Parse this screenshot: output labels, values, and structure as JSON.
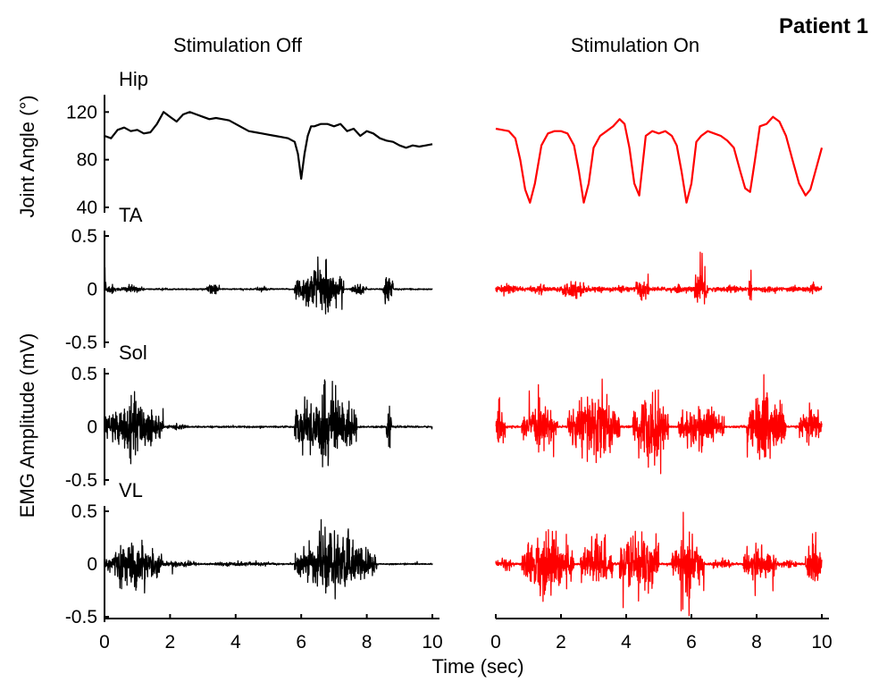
{
  "figure": {
    "patient_label": "Patient 1",
    "col_titles": [
      "Stimulation Off",
      "Stimulation On"
    ],
    "col_colors": [
      "#000000",
      "#ff0000"
    ],
    "ylabel_angle": "Joint Angle (°)",
    "ylabel_emg": "EMG Amplitude (mV)",
    "xlabel": "Time (sec)",
    "row_labels": [
      "Hip",
      "TA",
      "Sol",
      "VL"
    ]
  },
  "chart_data": [
    {
      "type": "line",
      "panel": "Hip - Stimulation Off",
      "label": "Hip",
      "color": "#000000",
      "xlim": [
        0,
        10
      ],
      "ylim": [
        40,
        130
      ],
      "yticks": [
        40,
        80,
        120
      ],
      "x": [
        0,
        0.2,
        0.4,
        0.6,
        0.8,
        1.0,
        1.2,
        1.4,
        1.6,
        1.8,
        2.0,
        2.2,
        2.4,
        2.6,
        2.8,
        3.0,
        3.2,
        3.4,
        3.6,
        3.8,
        4.0,
        4.2,
        4.4,
        4.6,
        4.8,
        5.0,
        5.2,
        5.4,
        5.6,
        5.8,
        5.9,
        6.0,
        6.1,
        6.2,
        6.3,
        6.4,
        6.6,
        6.8,
        7.0,
        7.2,
        7.4,
        7.6,
        7.8,
        8.0,
        8.2,
        8.4,
        8.6,
        8.8,
        9.0,
        9.2,
        9.4,
        9.6,
        9.8,
        10.0
      ],
      "values": [
        100,
        98,
        105,
        107,
        104,
        105,
        102,
        103,
        110,
        120,
        116,
        112,
        118,
        120,
        118,
        116,
        114,
        115,
        114,
        113,
        110,
        107,
        104,
        103,
        102,
        101,
        100,
        99,
        98,
        95,
        85,
        64,
        85,
        100,
        108,
        108,
        110,
        110,
        108,
        110,
        104,
        106,
        100,
        104,
        102,
        98,
        96,
        95,
        92,
        90,
        92,
        91,
        92,
        93
      ]
    },
    {
      "type": "line",
      "panel": "Hip - Stimulation On",
      "label": "Hip",
      "color": "#ff0000",
      "xlim": [
        0,
        10
      ],
      "ylim": [
        40,
        130
      ],
      "yticks": [
        40,
        80,
        120
      ],
      "x": [
        0,
        0.2,
        0.4,
        0.6,
        0.75,
        0.9,
        1.05,
        1.2,
        1.4,
        1.6,
        1.8,
        2.0,
        2.2,
        2.4,
        2.55,
        2.7,
        2.85,
        3.0,
        3.2,
        3.4,
        3.6,
        3.8,
        3.95,
        4.1,
        4.25,
        4.4,
        4.6,
        4.8,
        5.0,
        5.2,
        5.4,
        5.55,
        5.7,
        5.85,
        6.0,
        6.15,
        6.3,
        6.5,
        6.7,
        6.9,
        7.1,
        7.3,
        7.5,
        7.65,
        7.8,
        7.95,
        8.1,
        8.3,
        8.5,
        8.7,
        8.9,
        9.1,
        9.3,
        9.5,
        9.65,
        9.8,
        10.0
      ],
      "values": [
        106,
        105,
        104,
        98,
        80,
        55,
        44,
        60,
        92,
        102,
        104,
        104,
        102,
        92,
        70,
        44,
        60,
        90,
        100,
        104,
        108,
        114,
        110,
        90,
        60,
        50,
        100,
        104,
        102,
        104,
        100,
        92,
        70,
        44,
        60,
        95,
        100,
        104,
        102,
        100,
        96,
        90,
        70,
        56,
        53,
        80,
        108,
        110,
        116,
        112,
        100,
        80,
        60,
        50,
        55,
        70,
        90
      ]
    },
    {
      "type": "line",
      "panel": "TA - Stimulation Off",
      "label": "TA",
      "color": "#000000",
      "xlim": [
        0,
        10
      ],
      "ylim": [
        -0.5,
        0.5
      ],
      "yticks": [
        -0.5,
        0,
        0.5
      ],
      "bursts": [
        {
          "start": 0,
          "end": 0.05,
          "amp": 0.45
        },
        {
          "start": 0.05,
          "end": 0.35,
          "amp": 0.06
        },
        {
          "start": 0.4,
          "end": 1.2,
          "amp": 0.04
        },
        {
          "start": 3.1,
          "end": 3.5,
          "amp": 0.07
        },
        {
          "start": 4.6,
          "end": 5.0,
          "amp": 0.03
        },
        {
          "start": 5.8,
          "end": 7.3,
          "amp": 0.25
        },
        {
          "start": 7.5,
          "end": 8.0,
          "amp": 0.06
        },
        {
          "start": 8.5,
          "end": 8.8,
          "amp": 0.2
        }
      ],
      "baseline_noise": 0.006
    },
    {
      "type": "line",
      "panel": "TA - Stimulation On",
      "label": "TA",
      "color": "#ff0000",
      "xlim": [
        0,
        10
      ],
      "ylim": [
        -0.5,
        0.5
      ],
      "yticks": [
        -0.5,
        0,
        0.5
      ],
      "bursts": [
        {
          "start": 0,
          "end": 0.8,
          "amp": 0.05
        },
        {
          "start": 1.1,
          "end": 1.6,
          "amp": 0.05
        },
        {
          "start": 2.0,
          "end": 2.8,
          "amp": 0.1
        },
        {
          "start": 3.7,
          "end": 4.0,
          "amp": 0.05
        },
        {
          "start": 4.3,
          "end": 4.7,
          "amp": 0.14
        },
        {
          "start": 5.4,
          "end": 5.8,
          "amp": 0.05
        },
        {
          "start": 6.1,
          "end": 6.5,
          "amp": 0.3
        },
        {
          "start": 7.0,
          "end": 7.5,
          "amp": 0.05
        },
        {
          "start": 7.75,
          "end": 7.85,
          "amp": 0.25
        },
        {
          "start": 8.1,
          "end": 8.5,
          "amp": 0.05
        },
        {
          "start": 8.9,
          "end": 9.3,
          "amp": 0.04
        },
        {
          "start": 9.5,
          "end": 10.0,
          "amp": 0.04
        }
      ],
      "baseline_noise": 0.02
    },
    {
      "type": "line",
      "panel": "Sol - Stimulation Off",
      "label": "Sol",
      "color": "#000000",
      "xlim": [
        0,
        10
      ],
      "ylim": [
        -0.5,
        0.5
      ],
      "yticks": [
        -0.5,
        0,
        0.5
      ],
      "bursts": [
        {
          "start": 0,
          "end": 1.8,
          "amp": 0.28
        },
        {
          "start": 1.9,
          "end": 2.5,
          "amp": 0.03
        },
        {
          "start": 5.8,
          "end": 7.7,
          "amp": 0.4
        },
        {
          "start": 8.6,
          "end": 8.75,
          "amp": 0.3
        }
      ],
      "baseline_noise": 0.008
    },
    {
      "type": "line",
      "panel": "Sol - Stimulation On",
      "label": "Sol",
      "color": "#ff0000",
      "xlim": [
        0,
        10
      ],
      "ylim": [
        -0.5,
        0.5
      ],
      "yticks": [
        -0.5,
        0,
        0.5
      ],
      "bursts": [
        {
          "start": 0,
          "end": 0.3,
          "amp": 0.28
        },
        {
          "start": 0.8,
          "end": 1.9,
          "amp": 0.22
        },
        {
          "start": 2.2,
          "end": 3.8,
          "amp": 0.38
        },
        {
          "start": 4.2,
          "end": 5.3,
          "amp": 0.4
        },
        {
          "start": 5.6,
          "end": 7.0,
          "amp": 0.25
        },
        {
          "start": 7.7,
          "end": 8.9,
          "amp": 0.42
        },
        {
          "start": 9.3,
          "end": 10.0,
          "amp": 0.2
        }
      ],
      "baseline_noise": 0.01
    },
    {
      "type": "line",
      "panel": "VL - Stimulation Off",
      "label": "VL",
      "color": "#000000",
      "xlim": [
        0,
        10
      ],
      "ylim": [
        -0.5,
        0.5
      ],
      "yticks": [
        -0.5,
        0,
        0.5
      ],
      "bursts": [
        {
          "start": 0,
          "end": 1.8,
          "amp": 0.22
        },
        {
          "start": 1.8,
          "end": 2.8,
          "amp": 0.04
        },
        {
          "start": 2.8,
          "end": 5.5,
          "amp": 0.02
        },
        {
          "start": 5.8,
          "end": 8.3,
          "amp": 0.3
        }
      ],
      "baseline_noise": 0.006
    },
    {
      "type": "line",
      "panel": "VL - Stimulation On",
      "label": "VL",
      "color": "#ff0000",
      "xlim": [
        0,
        10
      ],
      "ylim": [
        -0.5,
        0.5
      ],
      "yticks": [
        -0.5,
        0,
        0.5
      ],
      "bursts": [
        {
          "start": 0,
          "end": 0.6,
          "amp": 0.06
        },
        {
          "start": 0.8,
          "end": 2.4,
          "amp": 0.35
        },
        {
          "start": 2.6,
          "end": 3.6,
          "amp": 0.32
        },
        {
          "start": 3.8,
          "end": 5.0,
          "amp": 0.38
        },
        {
          "start": 5.4,
          "end": 6.4,
          "amp": 0.3
        },
        {
          "start": 6.6,
          "end": 7.3,
          "amp": 0.05
        },
        {
          "start": 7.6,
          "end": 8.6,
          "amp": 0.22
        },
        {
          "start": 8.6,
          "end": 9.3,
          "amp": 0.04
        },
        {
          "start": 9.5,
          "end": 10.0,
          "amp": 0.25
        }
      ],
      "baseline_noise": 0.01
    }
  ],
  "x_axis": {
    "ticks": [
      0,
      2,
      4,
      6,
      8,
      10
    ]
  }
}
